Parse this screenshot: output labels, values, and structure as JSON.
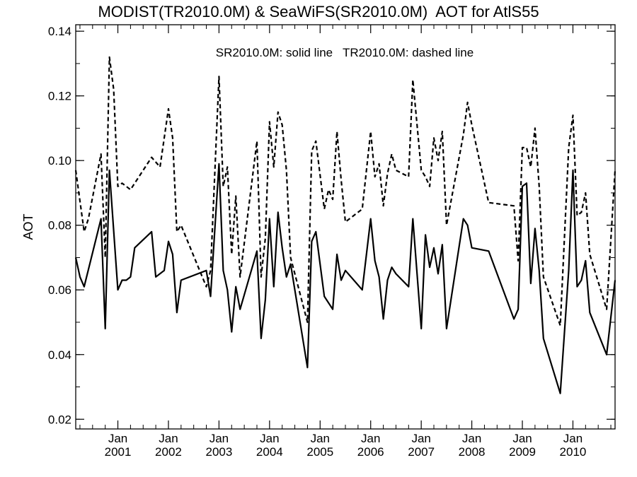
{
  "chart_data": {
    "type": "line",
    "title": "MODIST(TR2010.0M) & SeaWiFS(SR2010.0M)  AOT for AtlS55",
    "annotation": "SR2010.0M: solid line   TR2010.0M: dashed line",
    "xlabel": "",
    "ylabel": "AOT",
    "xlim": [
      "2000-03",
      "2010-11"
    ],
    "ylim": [
      0.017,
      0.142
    ],
    "yticks": [
      0.02,
      0.04,
      0.06,
      0.08,
      0.1,
      0.12,
      0.14
    ],
    "ytick_labels": [
      "0.02",
      "0.04",
      "0.06",
      "0.08",
      "0.10",
      "0.12",
      "0.14"
    ],
    "xticks": [
      {
        "date": "2001-01",
        "month": "Jan",
        "year": "2001"
      },
      {
        "date": "2002-01",
        "month": "Jan",
        "year": "2002"
      },
      {
        "date": "2003-01",
        "month": "Jan",
        "year": "2003"
      },
      {
        "date": "2004-01",
        "month": "Jan",
        "year": "2004"
      },
      {
        "date": "2005-01",
        "month": "Jan",
        "year": "2005"
      },
      {
        "date": "2006-01",
        "month": "Jan",
        "year": "2006"
      },
      {
        "date": "2007-01",
        "month": "Jan",
        "year": "2007"
      },
      {
        "date": "2008-01",
        "month": "Jan",
        "year": "2008"
      },
      {
        "date": "2009-01",
        "month": "Jan",
        "year": "2009"
      },
      {
        "date": "2010-01",
        "month": "Jan",
        "year": "2010"
      }
    ],
    "grid": false,
    "series": [
      {
        "name": "SR2010.0M",
        "style": "solid",
        "color": "#000000",
        "points": [
          [
            "2000-03",
            0.07
          ],
          [
            "2000-04",
            0.064
          ],
          [
            "2000-05",
            0.061
          ],
          [
            "2000-09",
            0.082
          ],
          [
            "2000-10",
            0.048
          ],
          [
            "2000-11",
            0.097
          ],
          [
            "2001-01",
            0.06
          ],
          [
            "2001-02",
            0.063
          ],
          [
            "2001-03",
            0.063
          ],
          [
            "2001-04",
            0.064
          ],
          [
            "2001-05",
            0.073
          ],
          [
            "2001-09",
            0.078
          ],
          [
            "2001-10",
            0.064
          ],
          [
            "2001-12",
            0.066
          ],
          [
            "2002-01",
            0.075
          ],
          [
            "2002-02",
            0.071
          ],
          [
            "2002-03",
            0.053
          ],
          [
            "2002-04",
            0.063
          ],
          [
            "2002-10",
            0.066
          ],
          [
            "2002-11",
            0.058
          ],
          [
            "2003-01",
            0.099
          ],
          [
            "2003-02",
            0.066
          ],
          [
            "2003-03",
            0.06
          ],
          [
            "2003-04",
            0.047
          ],
          [
            "2003-05",
            0.061
          ],
          [
            "2003-06",
            0.054
          ],
          [
            "2003-10",
            0.072
          ],
          [
            "2003-11",
            0.045
          ],
          [
            "2003-12",
            0.057
          ],
          [
            "2004-01",
            0.082
          ],
          [
            "2004-02",
            0.061
          ],
          [
            "2004-03",
            0.084
          ],
          [
            "2004-04",
            0.073
          ],
          [
            "2004-05",
            0.064
          ],
          [
            "2004-06",
            0.068
          ],
          [
            "2004-10",
            0.036
          ],
          [
            "2004-11",
            0.075
          ],
          [
            "2004-12",
            0.078
          ],
          [
            "2005-02",
            0.058
          ],
          [
            "2005-04",
            0.054
          ],
          [
            "2005-05",
            0.071
          ],
          [
            "2005-06",
            0.063
          ],
          [
            "2005-07",
            0.066
          ],
          [
            "2005-11",
            0.06
          ],
          [
            "2006-01",
            0.082
          ],
          [
            "2006-02",
            0.069
          ],
          [
            "2006-03",
            0.064
          ],
          [
            "2006-04",
            0.051
          ],
          [
            "2006-05",
            0.063
          ],
          [
            "2006-06",
            0.067
          ],
          [
            "2006-07",
            0.065
          ],
          [
            "2006-10",
            0.061
          ],
          [
            "2006-11",
            0.082
          ],
          [
            "2007-01",
            0.048
          ],
          [
            "2007-02",
            0.077
          ],
          [
            "2007-03",
            0.067
          ],
          [
            "2007-04",
            0.073
          ],
          [
            "2007-05",
            0.065
          ],
          [
            "2007-06",
            0.074
          ],
          [
            "2007-07",
            0.048
          ],
          [
            "2007-11",
            0.082
          ],
          [
            "2007-12",
            0.08
          ],
          [
            "2008-01",
            0.073
          ],
          [
            "2008-05",
            0.072
          ],
          [
            "2008-11",
            0.051
          ],
          [
            "2008-12",
            0.054
          ],
          [
            "2009-01",
            0.092
          ],
          [
            "2009-02",
            0.093
          ],
          [
            "2009-03",
            0.062
          ],
          [
            "2009-04",
            0.079
          ],
          [
            "2009-05",
            0.066
          ],
          [
            "2009-06",
            0.045
          ],
          [
            "2009-10",
            0.028
          ],
          [
            "2009-12",
            0.066
          ],
          [
            "2010-01",
            0.097
          ],
          [
            "2010-02",
            0.061
          ],
          [
            "2010-03",
            0.063
          ],
          [
            "2010-04",
            0.069
          ],
          [
            "2010-05",
            0.053
          ],
          [
            "2010-09",
            0.04
          ],
          [
            "2010-11",
            0.063
          ]
        ]
      },
      {
        "name": "TR2010.0M",
        "style": "dashed",
        "color": "#000000",
        "points": [
          [
            "2000-03",
            0.097
          ],
          [
            "2000-05",
            0.078
          ],
          [
            "2000-06",
            0.082
          ],
          [
            "2000-09",
            0.102
          ],
          [
            "2000-10",
            0.07
          ],
          [
            "2000-11",
            0.132
          ],
          [
            "2000-12",
            0.122
          ],
          [
            "2001-01",
            0.092
          ],
          [
            "2001-02",
            0.093
          ],
          [
            "2001-04",
            0.091
          ],
          [
            "2001-09",
            0.101
          ],
          [
            "2001-11",
            0.098
          ],
          [
            "2002-01",
            0.116
          ],
          [
            "2002-02",
            0.107
          ],
          [
            "2002-03",
            0.078
          ],
          [
            "2002-04",
            0.08
          ],
          [
            "2002-10",
            0.061
          ],
          [
            "2002-11",
            0.066
          ],
          [
            "2003-01",
            0.126
          ],
          [
            "2003-02",
            0.092
          ],
          [
            "2003-03",
            0.098
          ],
          [
            "2003-04",
            0.071
          ],
          [
            "2003-05",
            0.089
          ],
          [
            "2003-06",
            0.064
          ],
          [
            "2003-10",
            0.106
          ],
          [
            "2003-11",
            0.064
          ],
          [
            "2003-12",
            0.076
          ],
          [
            "2004-01",
            0.112
          ],
          [
            "2004-02",
            0.098
          ],
          [
            "2004-03",
            0.115
          ],
          [
            "2004-04",
            0.111
          ],
          [
            "2004-05",
            0.097
          ],
          [
            "2004-06",
            0.07
          ],
          [
            "2004-10",
            0.05
          ],
          [
            "2004-11",
            0.103
          ],
          [
            "2004-12",
            0.106
          ],
          [
            "2005-02",
            0.085
          ],
          [
            "2005-03",
            0.091
          ],
          [
            "2005-04",
            0.088
          ],
          [
            "2005-05",
            0.109
          ],
          [
            "2005-06",
            0.094
          ],
          [
            "2005-07",
            0.081
          ],
          [
            "2005-11",
            0.085
          ],
          [
            "2006-01",
            0.109
          ],
          [
            "2006-02",
            0.095
          ],
          [
            "2006-03",
            0.099
          ],
          [
            "2006-04",
            0.086
          ],
          [
            "2006-05",
            0.096
          ],
          [
            "2006-06",
            0.102
          ],
          [
            "2006-07",
            0.097
          ],
          [
            "2006-10",
            0.095
          ],
          [
            "2006-11",
            0.125
          ],
          [
            "2007-01",
            0.097
          ],
          [
            "2007-02",
            0.095
          ],
          [
            "2007-03",
            0.092
          ],
          [
            "2007-04",
            0.107
          ],
          [
            "2007-05",
            0.1
          ],
          [
            "2007-06",
            0.109
          ],
          [
            "2007-07",
            0.08
          ],
          [
            "2007-11",
            0.108
          ],
          [
            "2007-12",
            0.118
          ],
          [
            "2008-01",
            0.111
          ],
          [
            "2008-05",
            0.087
          ],
          [
            "2008-11",
            0.086
          ],
          [
            "2008-12",
            0.069
          ],
          [
            "2009-01",
            0.104
          ],
          [
            "2009-02",
            0.104
          ],
          [
            "2009-03",
            0.098
          ],
          [
            "2009-04",
            0.11
          ],
          [
            "2009-05",
            0.092
          ],
          [
            "2009-06",
            0.064
          ],
          [
            "2009-10",
            0.049
          ],
          [
            "2009-12",
            0.104
          ],
          [
            "2010-01",
            0.114
          ],
          [
            "2010-02",
            0.083
          ],
          [
            "2010-03",
            0.084
          ],
          [
            "2010-04",
            0.09
          ],
          [
            "2010-05",
            0.071
          ],
          [
            "2010-09",
            0.054
          ],
          [
            "2010-11",
            0.097
          ]
        ]
      }
    ]
  }
}
